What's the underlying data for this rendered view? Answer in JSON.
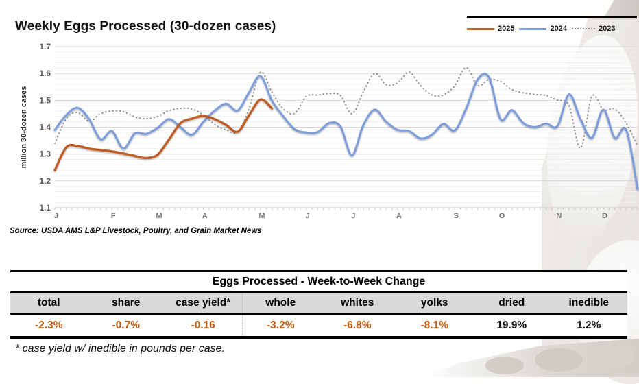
{
  "chart": {
    "title": "Weekly Eggs Processed (30-dozen cases)",
    "y_axis_title": "million 30-dozen cases",
    "y_tick_labels": [
      "1.7",
      "1.6",
      "1.5",
      "1.4",
      "1.3",
      "1.2",
      "1.1"
    ],
    "source": "Source: USDA AMS L&P Livestock, Poultry, and Grain Market News"
  },
  "chart_data": {
    "type": "line",
    "title": "Weekly Eggs Processed (30-dozen cases)",
    "xlabel": "",
    "ylabel": "million 30-dozen cases",
    "ylim": [
      1.1,
      1.7
    ],
    "y_tick_step": 0.1,
    "grid": "horizontal, minor every 0.02, major every 0.1",
    "legend_position": "top-right",
    "x_unit": "weeks (Jan–Dec)",
    "month_labels": [
      "J",
      "F",
      "M",
      "A",
      "M",
      "J",
      "J",
      "A",
      "S",
      "O",
      "N",
      "D"
    ],
    "month_label_weeks": [
      1,
      6,
      10,
      14,
      19,
      23,
      27,
      31,
      36,
      40,
      45,
      49
    ],
    "series": [
      {
        "name": "2025",
        "color": "#BE5D28",
        "dash": "solid",
        "width": 3.4,
        "values": [
          1.24,
          1.325,
          1.33,
          1.32,
          1.315,
          1.31,
          1.302,
          1.293,
          1.285,
          1.298,
          1.355,
          1.415,
          1.432,
          1.442,
          1.43,
          1.408,
          1.383,
          1.445,
          1.503,
          1.47
        ]
      },
      {
        "name": "2024",
        "color": "#7F9ED9",
        "dash": "solid",
        "width": 3.2,
        "values": [
          1.39,
          1.445,
          1.472,
          1.43,
          1.355,
          1.385,
          1.32,
          1.377,
          1.375,
          1.398,
          1.43,
          1.4,
          1.372,
          1.42,
          1.462,
          1.487,
          1.462,
          1.53,
          1.59,
          1.498,
          1.44,
          1.392,
          1.38,
          1.382,
          1.415,
          1.402,
          1.295,
          1.408,
          1.465,
          1.42,
          1.39,
          1.386,
          1.358,
          1.372,
          1.412,
          1.388,
          1.47,
          1.578,
          1.585,
          1.43,
          1.463,
          1.415,
          1.4,
          1.413,
          1.405,
          1.522,
          1.43,
          1.36,
          1.465,
          1.36,
          1.39,
          1.17
        ]
      },
      {
        "name": "2023",
        "color": "#8f8f8f",
        "dash": "dotted",
        "width": 2,
        "values": [
          1.34,
          1.432,
          1.455,
          1.422,
          1.45,
          1.46,
          1.458,
          1.438,
          1.432,
          1.44,
          1.462,
          1.47,
          1.468,
          1.445,
          1.41,
          1.39,
          1.382,
          1.47,
          1.605,
          1.53,
          1.468,
          1.452,
          1.515,
          1.52,
          1.525,
          1.518,
          1.45,
          1.532,
          1.6,
          1.558,
          1.565,
          1.605,
          1.555,
          1.52,
          1.52,
          1.555,
          1.622,
          1.555,
          1.578,
          1.57,
          1.54,
          1.528,
          1.522,
          1.518,
          1.5,
          1.48,
          1.322,
          1.515,
          1.465,
          1.468,
          1.415,
          1.33
        ]
      }
    ]
  },
  "table": {
    "title": "Eggs Processed - Week-to-Week Change",
    "columns": [
      "total",
      "share",
      "case yield*",
      "whole",
      "whites",
      "yolks",
      "dried",
      "inedible"
    ],
    "values": [
      "-2.3%",
      "-0.7%",
      "-0.16",
      "-3.2%",
      "-6.8%",
      "-8.1%",
      "19.9%",
      "1.2%"
    ],
    "value_colors": [
      "#C55A11",
      "#C55A11",
      "#C55A11",
      "#C55A11",
      "#C55A11",
      "#C55A11",
      "#141414",
      "#141414"
    ],
    "separator_after_column": 3,
    "footnote": "* case yield w/ inedible in pounds per case."
  }
}
